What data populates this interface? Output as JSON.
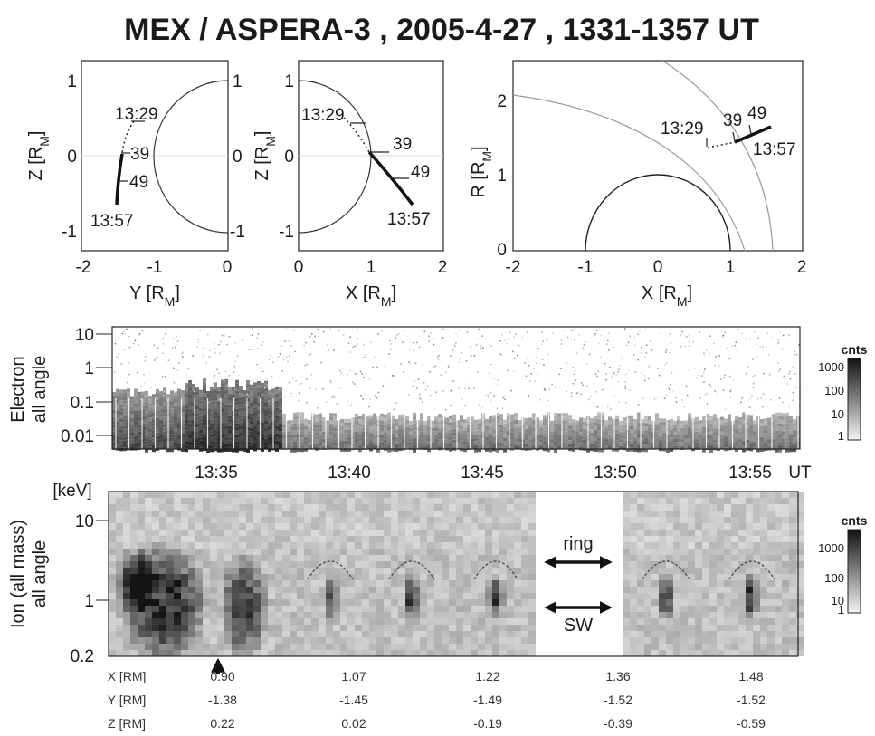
{
  "title": "MEX / ASPERA-3 ,  2005-4-27 , 1331-1357 UT",
  "orbit_panels": [
    {
      "xlabel_main": "Y [R",
      "xlabel_sub": "M",
      "xlabel_end": "]",
      "ylabel_main": "Z [R",
      "ylabel_sub": "M",
      "ylabel_end": "]",
      "xticks": [
        "-2",
        "-1",
        "0"
      ],
      "yticks": [
        "1",
        "0",
        "-1"
      ],
      "right_ticks": [
        "1",
        "0",
        "-1"
      ],
      "labels": [
        "13:29",
        "39",
        "49",
        "13:57"
      ]
    },
    {
      "xlabel_main": "X [R",
      "xlabel_sub": "M",
      "xlabel_end": "]",
      "ylabel_main": "Z [R",
      "ylabel_sub": "M",
      "ylabel_end": "]",
      "xticks": [
        "0",
        "1",
        "2"
      ],
      "yticks": [
        "1",
        "0",
        "-1"
      ],
      "labels": [
        "13:29",
        "39",
        "49",
        "13:57"
      ]
    },
    {
      "xlabel_main": "X [R",
      "xlabel_sub": "M",
      "xlabel_end": "]",
      "ylabel_main": "R [R",
      "ylabel_sub": "M",
      "ylabel_end": "]",
      "xticks": [
        "-2",
        "-1",
        "0",
        "1",
        "2"
      ],
      "yticks": [
        "2",
        "1",
        "0"
      ],
      "labels": [
        "13:29",
        "39",
        "49",
        "13:57"
      ]
    }
  ],
  "electron_panel": {
    "ylabel_line1": "Electron",
    "ylabel_line2": "all angle",
    "yticks": [
      "10",
      "1",
      "0.1",
      "0.01"
    ],
    "time_ticks": [
      "13:35",
      "13:40",
      "13:45",
      "13:50",
      "13:55"
    ],
    "time_unit": "UT",
    "colorbar": {
      "title": "cnts",
      "ticks": [
        "1000",
        "100",
        "10",
        "1"
      ]
    }
  },
  "ion_panel": {
    "unit": "[keV]",
    "ylabel_line1": "Ion (all mass)",
    "ylabel_line2": "all angle",
    "yticks": [
      "10",
      "1",
      "0.2"
    ],
    "annotations": {
      "ring": "ring",
      "sw": "SW"
    },
    "colorbar": {
      "title": "cnts",
      "ticks": [
        "1000",
        "100",
        "10",
        "1"
      ]
    }
  },
  "position_table": {
    "rows": [
      {
        "label": "X [RM]",
        "values": [
          "0.90",
          "1.07",
          "1.22",
          "1.36",
          "1.48"
        ]
      },
      {
        "label": "Y [RM]",
        "values": [
          "-1.38",
          "-1.45",
          "-1.49",
          "-1.52",
          "-1.52"
        ]
      },
      {
        "label": "Z [RM]",
        "values": [
          "0.22",
          "0.02",
          "-0.19",
          "-0.39",
          "-0.59"
        ]
      }
    ]
  }
}
